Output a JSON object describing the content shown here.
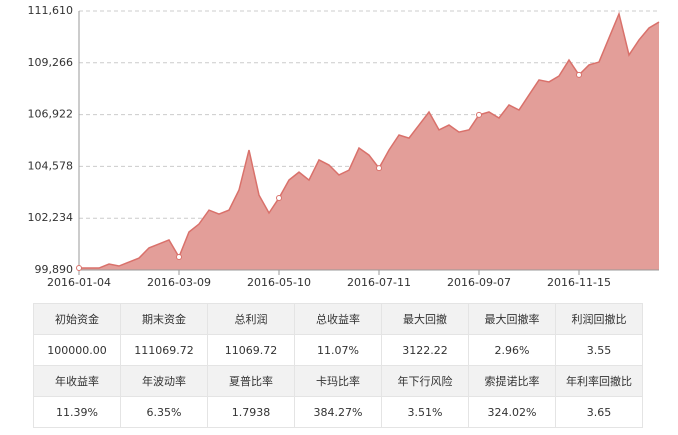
{
  "chart_data": {
    "type": "area",
    "categories": [
      "2016-01-04",
      null,
      null,
      null,
      null,
      null,
      null,
      null,
      null,
      null,
      "2016-03-09",
      null,
      null,
      null,
      null,
      null,
      null,
      null,
      null,
      null,
      "2016-05-10",
      null,
      null,
      null,
      null,
      null,
      null,
      null,
      null,
      null,
      "2016-07-11",
      null,
      null,
      null,
      null,
      null,
      null,
      null,
      null,
      null,
      "2016-09-07",
      null,
      null,
      null,
      null,
      null,
      null,
      null,
      null,
      null,
      "2016-11-15",
      null,
      null,
      null,
      null,
      null,
      null,
      null,
      null
    ],
    "values": [
      99980,
      99980,
      99980,
      100160,
      100070,
      100250,
      100430,
      100890,
      101070,
      101250,
      100480,
      101610,
      101970,
      102600,
      102420,
      102600,
      103510,
      105320,
      103280,
      102470,
      103150,
      103960,
      104320,
      103960,
      104870,
      104640,
      104190,
      104410,
      105410,
      105090,
      104500,
      105320,
      106000,
      105860,
      106450,
      107040,
      106230,
      106450,
      106130,
      106230,
      106910,
      107040,
      106770,
      107360,
      107130,
      107810,
      108490,
      108400,
      108670,
      109390,
      108720,
      109170,
      109300,
      110390,
      111480,
      109620,
      110300,
      110840,
      111110
    ],
    "color": "#e39e99",
    "line_color": "#d9716b",
    "ylim": [
      99890,
      111610
    ],
    "yticks": [
      {
        "value": 99890,
        "label": "99,890"
      },
      {
        "value": 102234,
        "label": "102,234"
      },
      {
        "value": 104578,
        "label": "104,578"
      },
      {
        "value": 106922,
        "label": "106,922"
      },
      {
        "value": 109266,
        "label": "109,266"
      },
      {
        "value": 111610,
        "label": "111,610"
      }
    ],
    "grid": true
  },
  "table": {
    "rows": [
      [
        "初始资金",
        "期末资金",
        "总利润",
        "总收益率",
        "最大回撤",
        "最大回撤率",
        "利润回撤比"
      ],
      [
        "100000.00",
        "111069.72",
        "11069.72",
        "11.07%",
        "3122.22",
        "2.96%",
        "3.55"
      ],
      [
        "年收益率",
        "年波动率",
        "夏普比率",
        "卡玛比率",
        "年下行风险",
        "索提诺比率",
        "年利率回撤比"
      ],
      [
        "11.39%",
        "6.35%",
        "1.7938",
        "384.27%",
        "3.51%",
        "324.02%",
        "3.65"
      ]
    ]
  }
}
